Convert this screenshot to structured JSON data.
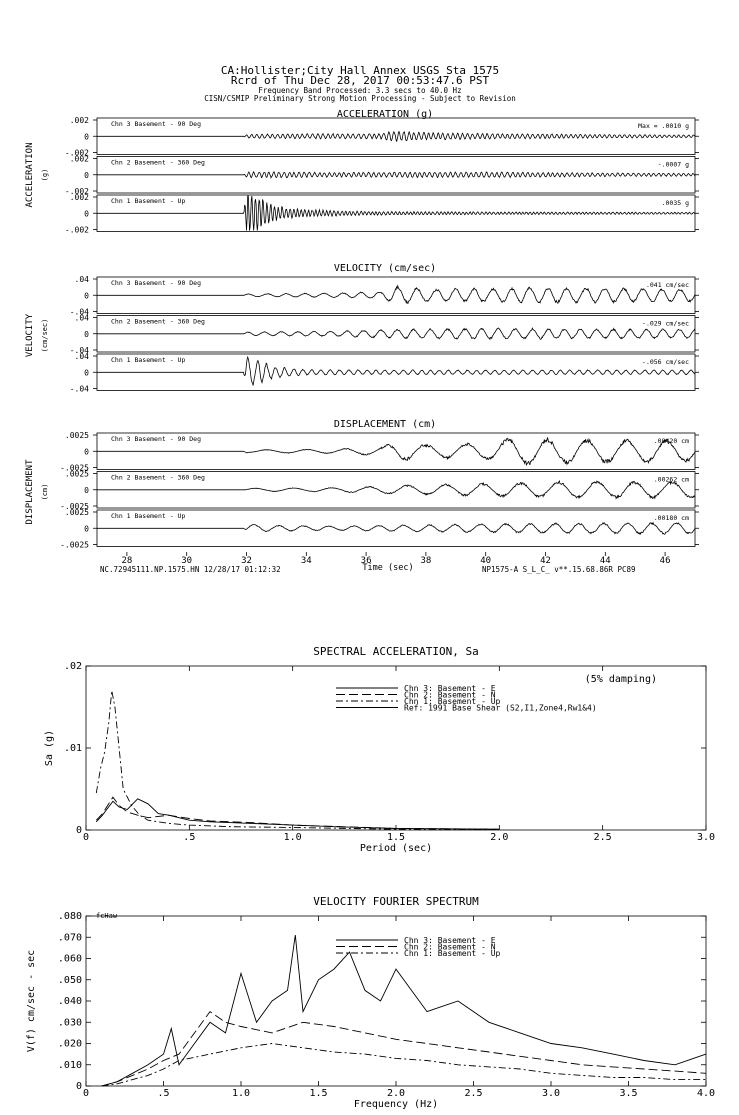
{
  "header": {
    "station": "CA:Hollister;City Hall Annex    USGS Sta 1575",
    "record": "Rcrd of Thu Dec 28, 2017 00:53:47.6 PST",
    "band": "Frequency Band Processed: 3.3 secs to 40.0 Hz",
    "processing": "CISN/CSMIP Preliminary Strong Motion Processing - Subject to Revision"
  },
  "footer": {
    "left": "NC.72945111.NP.1575.HN 12/28/17 01:12:32",
    "right": "NP1575-A  S_L_C_  v**.15.68.86R PC89"
  },
  "chart_data": [
    {
      "type": "line",
      "title": "ACCELERATION (g)",
      "group_label": "ACCELERATION",
      "unit_label": "(g)",
      "ylim": [
        -0.002,
        0.002
      ],
      "yticks": [
        ".002",
        "0",
        "-.002"
      ],
      "series": [
        {
          "name": "Chn 3  Basement - 90 Deg",
          "max_label": "Max =   .0010   g",
          "peak": 0.001,
          "envelope": {
            "t": [
              27,
              31.9,
              32,
              33,
              36.5,
              37,
              38,
              40,
              44,
              47
            ],
            "a": [
              0,
              0,
              0.0002,
              0.00025,
              0.0003,
              0.0006,
              0.0004,
              0.0003,
              0.0002,
              0.00015
            ]
          },
          "cycles_per_sec": 6.0,
          "seed": 3
        },
        {
          "name": "Chn 2  Basement - 360 Deg",
          "max_label": "-.0007   g",
          "peak": -0.0007,
          "envelope": {
            "t": [
              27,
              31.9,
              32,
              32.5,
              35,
              38,
              40,
              44,
              47
            ],
            "a": [
              0,
              0,
              0.0003,
              0.00035,
              0.00025,
              0.0003,
              0.0003,
              0.0002,
              0.00015
            ]
          },
          "cycles_per_sec": 6.0,
          "seed": 7
        },
        {
          "name": "Chn 1  Basement - Up",
          "max_label": ".0035   g",
          "peak": 0.0035,
          "envelope": {
            "t": [
              27,
              31.9,
              32,
              32.2,
              33,
              34,
              36,
              40,
              47
            ],
            "a": [
              0,
              0,
              0.0026,
              0.0022,
              0.0008,
              0.0004,
              0.0002,
              0.00015,
              0.0001
            ]
          },
          "cycles_per_sec": 8.0,
          "seed": 11
        }
      ]
    },
    {
      "type": "line",
      "title": "VELOCITY (cm/sec)",
      "group_label": "VELOCITY",
      "unit_label": "(cm/sec)",
      "ylim": [
        -0.04,
        0.04
      ],
      "yticks": [
        ".04",
        "0",
        "-.04"
      ],
      "series": [
        {
          "name": "Chn 3  Basement - 90 Deg",
          "max_label": ".041   cm/sec",
          "peak": 0.041,
          "envelope": {
            "t": [
              27,
              31.9,
              32,
              35,
              36.5,
              37,
              38,
              40,
              42,
              44,
              47
            ],
            "a": [
              0,
              0,
              0.003,
              0.005,
              0.008,
              0.02,
              0.014,
              0.015,
              0.018,
              0.016,
              0.014
            ]
          },
          "cycles_per_sec": 1.6,
          "seed": 5
        },
        {
          "name": "Chn 2  Basement - 360 Deg",
          "max_label": "-.029   cm/sec",
          "peak": -0.029,
          "envelope": {
            "t": [
              27,
              31.9,
              32,
              35,
              37,
              40,
              43,
              47
            ],
            "a": [
              0,
              0,
              0.004,
              0.006,
              0.01,
              0.012,
              0.011,
              0.01
            ]
          },
          "cycles_per_sec": 1.8,
          "seed": 9
        },
        {
          "name": "Chn 1  Basement - Up",
          "max_label": "-.056   cm/sec",
          "peak": -0.056,
          "envelope": {
            "t": [
              27,
              31.9,
              32,
              32.3,
              33,
              34,
              36,
              40,
              47
            ],
            "a": [
              0,
              0,
              0.032,
              0.028,
              0.012,
              0.006,
              0.005,
              0.005,
              0.005
            ]
          },
          "cycles_per_sec": 3.2,
          "seed": 13
        }
      ]
    },
    {
      "type": "line",
      "title": "DISPLACEMENT (cm)",
      "group_label": "DISPLACEMENT",
      "unit_label": "(cm)",
      "ylim": [
        -0.0025,
        0.0025
      ],
      "yticks": [
        ".0025",
        "0",
        "-.0025"
      ],
      "xlabel": "Time (sec)",
      "xlim": [
        27,
        47
      ],
      "xticks": [
        28,
        30,
        32,
        34,
        36,
        38,
        40,
        42,
        44,
        46
      ],
      "series": [
        {
          "name": "Chn 3  Basement - 90 Deg",
          "max_label": ".00420   cm",
          "peak": 0.0042,
          "envelope": {
            "t": [
              27,
              31.9,
              32,
              35,
              36.5,
              37,
              38,
              40,
              41,
              42,
              44,
              47
            ],
            "a": [
              0,
              0,
              0.0002,
              0.0003,
              0.0006,
              0.0014,
              0.0009,
              0.0012,
              0.0019,
              0.0018,
              0.0016,
              0.0015
            ]
          },
          "cycles_per_sec": 0.75,
          "seed": 17
        },
        {
          "name": "Chn 2  Basement - 360 Deg",
          "max_label": ".00262   cm",
          "peak": 0.00262,
          "envelope": {
            "t": [
              27,
              31.9,
              32,
              35,
              37,
              40,
              43,
              47
            ],
            "a": [
              0,
              0,
              0.0002,
              0.0003,
              0.0006,
              0.0009,
              0.0012,
              0.0011
            ]
          },
          "cycles_per_sec": 0.8,
          "seed": 19
        },
        {
          "name": "Chn 1  Basement - Up",
          "max_label": ".00180   cm",
          "peak": 0.0018,
          "envelope": {
            "t": [
              27,
              31.9,
              32,
              33,
              35,
              38,
              42,
              47
            ],
            "a": [
              0,
              0,
              0.0006,
              0.0004,
              0.0003,
              0.0005,
              0.0007,
              0.0008
            ]
          },
          "cycles_per_sec": 1.2,
          "seed": 23
        }
      ]
    },
    {
      "type": "line",
      "title": "SPECTRAL ACCELERATION, Sa",
      "xlabel": "Period (sec)",
      "ylabel": "Sa (g)",
      "xlim": [
        0,
        3.0
      ],
      "ylim": [
        0,
        0.02
      ],
      "xticks": [
        "0",
        ".5",
        "1.0",
        "1.5",
        "2.0",
        "2.5",
        "3.0"
      ],
      "yticks": [
        ".02",
        ".01",
        "0"
      ],
      "annotation": "(5% damping)",
      "series": [
        {
          "name": "Chn 3: Basement - E",
          "x": [
            0.05,
            0.08,
            0.1,
            0.13,
            0.16,
            0.2,
            0.25,
            0.3,
            0.35,
            0.4,
            0.5,
            0.6,
            0.8,
            1.0,
            1.2,
            1.5,
            2.0
          ],
          "y": [
            0.001,
            0.0018,
            0.0025,
            0.0035,
            0.0028,
            0.0025,
            0.0038,
            0.0032,
            0.002,
            0.0018,
            0.0012,
            0.001,
            0.0008,
            0.0006,
            0.0004,
            0.0002,
            0.0001
          ]
        },
        {
          "name": "Chn 2: Basement - N",
          "x": [
            0.05,
            0.08,
            0.1,
            0.13,
            0.16,
            0.2,
            0.25,
            0.3,
            0.4,
            0.5,
            0.6,
            0.8,
            1.0,
            1.5,
            2.0
          ],
          "y": [
            0.0012,
            0.002,
            0.0028,
            0.004,
            0.003,
            0.0022,
            0.0018,
            0.0015,
            0.0018,
            0.0014,
            0.0011,
            0.0009,
            0.0006,
            0.0002,
            0.0001
          ]
        },
        {
          "name": "Chn 1: Basement - Up",
          "x": [
            0.05,
            0.07,
            0.09,
            0.11,
            0.125,
            0.14,
            0.16,
            0.18,
            0.22,
            0.26,
            0.3,
            0.4,
            0.5,
            0.7,
            1.0,
            1.5,
            2.0
          ],
          "y": [
            0.0045,
            0.0075,
            0.0095,
            0.013,
            0.017,
            0.015,
            0.01,
            0.005,
            0.003,
            0.0018,
            0.0012,
            0.0008,
            0.0006,
            0.0004,
            0.0003,
            0.0001,
            5e-05
          ]
        },
        {
          "name": "Ref: 1991 Base Shear (S2,I1,Zone4,Rw1&4)",
          "x": [],
          "y": []
        }
      ]
    },
    {
      "type": "line",
      "title": "VELOCITY FOURIER SPECTRUM",
      "corner_tag": "fcHaw",
      "xlabel": "Frequency (Hz)",
      "ylabel": "V(f)   cm/sec - sec",
      "xlim": [
        0,
        4.0
      ],
      "ylim": [
        0,
        0.08
      ],
      "xticks": [
        "0",
        ".5",
        "1.0",
        "1.5",
        "2.0",
        "2.5",
        "3.0",
        "3.5",
        "4.0"
      ],
      "yticks": [
        ".080",
        ".070",
        ".060",
        ".050",
        ".040",
        ".030",
        ".020",
        ".010",
        "0"
      ],
      "series": [
        {
          "name": "Chn 3: Basement - E",
          "x": [
            0.1,
            0.2,
            0.3,
            0.4,
            0.5,
            0.55,
            0.6,
            0.7,
            0.8,
            0.9,
            1.0,
            1.1,
            1.2,
            1.3,
            1.35,
            1.4,
            1.5,
            1.6,
            1.7,
            1.8,
            1.9,
            2.0,
            2.2,
            2.4,
            2.6,
            2.8,
            3.0,
            3.2,
            3.4,
            3.6,
            3.8,
            4.0
          ],
          "y": [
            0.0,
            0.002,
            0.006,
            0.01,
            0.015,
            0.027,
            0.01,
            0.02,
            0.03,
            0.025,
            0.053,
            0.03,
            0.04,
            0.045,
            0.071,
            0.035,
            0.05,
            0.055,
            0.063,
            0.045,
            0.04,
            0.055,
            0.035,
            0.04,
            0.03,
            0.025,
            0.02,
            0.018,
            0.015,
            0.012,
            0.01,
            0.015
          ]
        },
        {
          "name": "Chn 2: Basement - N",
          "x": [
            0.1,
            0.2,
            0.3,
            0.4,
            0.5,
            0.6,
            0.7,
            0.8,
            0.9,
            1.0,
            1.2,
            1.4,
            1.6,
            1.8,
            2.0,
            2.2,
            2.4,
            2.6,
            2.8,
            3.0,
            3.2,
            3.4,
            3.6,
            3.8,
            4.0
          ],
          "y": [
            0.0,
            0.002,
            0.005,
            0.008,
            0.012,
            0.015,
            0.025,
            0.035,
            0.03,
            0.028,
            0.025,
            0.03,
            0.028,
            0.025,
            0.022,
            0.02,
            0.018,
            0.016,
            0.014,
            0.012,
            0.01,
            0.009,
            0.008,
            0.007,
            0.006
          ]
        },
        {
          "name": "Chn 1: Basement - Up",
          "x": [
            0.1,
            0.2,
            0.3,
            0.4,
            0.5,
            0.6,
            0.8,
            1.0,
            1.2,
            1.4,
            1.6,
            1.8,
            2.0,
            2.2,
            2.4,
            2.6,
            2.8,
            3.0,
            3.2,
            3.4,
            3.6,
            3.8,
            4.0
          ],
          "y": [
            0.0,
            0.001,
            0.003,
            0.005,
            0.008,
            0.012,
            0.015,
            0.018,
            0.02,
            0.018,
            0.016,
            0.015,
            0.013,
            0.012,
            0.01,
            0.009,
            0.008,
            0.006,
            0.005,
            0.004,
            0.004,
            0.003,
            0.003
          ]
        }
      ]
    }
  ]
}
